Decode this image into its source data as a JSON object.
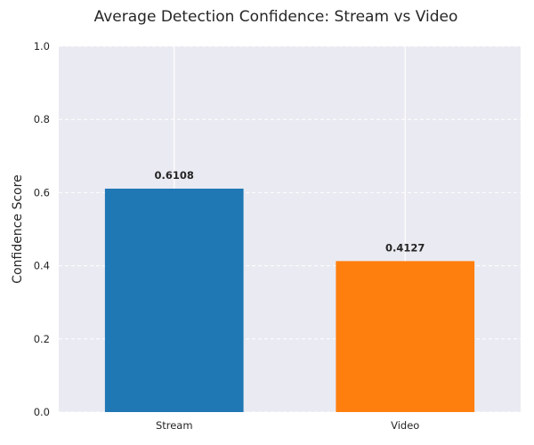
{
  "chart_data": {
    "type": "bar",
    "title": "Average Detection Confidence: Stream vs Video",
    "xlabel": "",
    "ylabel": "Confidence Score",
    "categories": [
      "Stream",
      "Video"
    ],
    "values": [
      0.6108,
      0.4127
    ],
    "value_labels": [
      "0.6108",
      "0.4127"
    ],
    "colors": [
      "#1f77b4",
      "#ff7f0e"
    ],
    "ylim": [
      0,
      1.0
    ],
    "yticks": [
      0.0,
      0.2,
      0.4,
      0.6,
      0.8,
      1.0
    ],
    "ytick_labels": [
      "0.0",
      "0.2",
      "0.4",
      "0.6",
      "0.8",
      "1.0"
    ],
    "grid": {
      "y": "dashed",
      "x": "solid"
    },
    "background_color": "#eaeaf2",
    "legend": "none"
  }
}
